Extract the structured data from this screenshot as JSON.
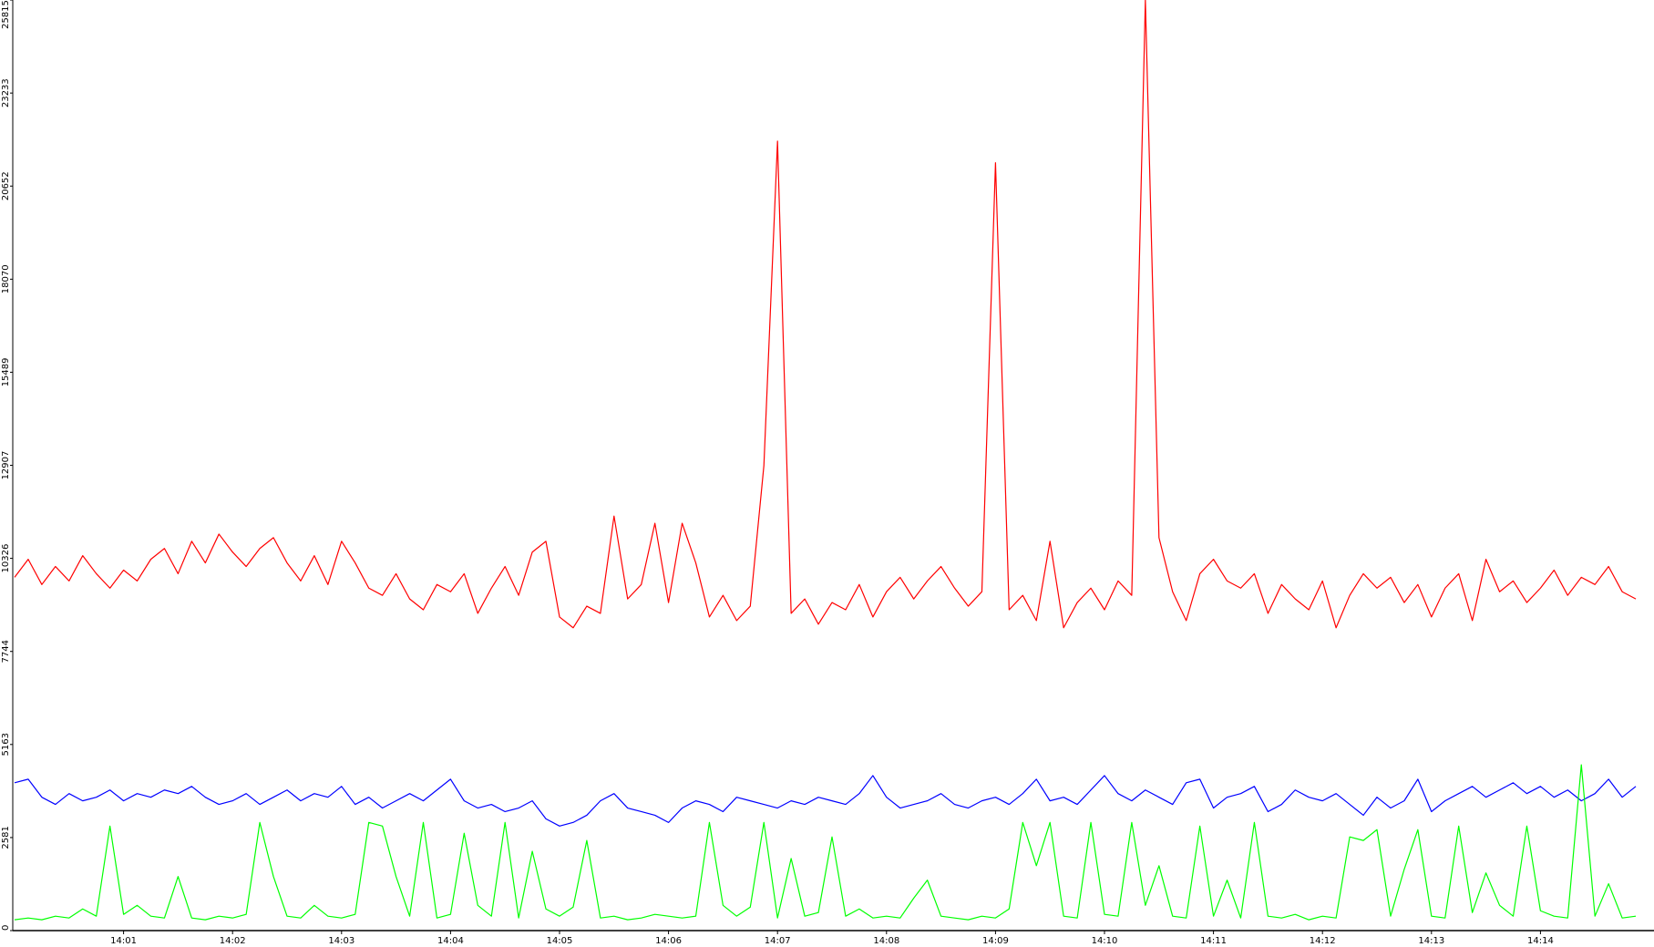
{
  "chart_data": {
    "type": "line",
    "categories": [
      null,
      null,
      null,
      null,
      null,
      null,
      null,
      null,
      "14:01",
      null,
      null,
      null,
      null,
      null,
      null,
      null,
      "14:02",
      null,
      null,
      null,
      null,
      null,
      null,
      null,
      "14:03",
      null,
      null,
      null,
      null,
      null,
      null,
      null,
      "14:04",
      null,
      null,
      null,
      null,
      null,
      null,
      null,
      "14:05",
      null,
      null,
      null,
      null,
      null,
      null,
      null,
      "14:06",
      null,
      null,
      null,
      null,
      null,
      null,
      null,
      "14:07",
      null,
      null,
      null,
      null,
      null,
      null,
      null,
      "14:08",
      null,
      null,
      null,
      null,
      null,
      null,
      null,
      "14:09",
      null,
      null,
      null,
      null,
      null,
      null,
      null,
      "14:10",
      null,
      null,
      null,
      null,
      null,
      null,
      null,
      "14:11",
      null,
      null,
      null,
      null,
      null,
      null,
      null,
      "14:12",
      null,
      null,
      null,
      null,
      null,
      null,
      null,
      "14:13",
      null,
      null,
      null,
      null,
      null,
      null,
      null,
      "14:14",
      null,
      null,
      null,
      null,
      null,
      null,
      null
    ],
    "series": [
      {
        "color": "#ff0000",
        "values": [
          9800,
          10300,
          9600,
          10100,
          9700,
          10400,
          9900,
          9500,
          10000,
          9700,
          10300,
          10600,
          9900,
          10800,
          10200,
          11000,
          10500,
          10100,
          10600,
          10900,
          10200,
          9700,
          10400,
          9600,
          10800,
          10200,
          9500,
          9300,
          9900,
          9200,
          8900,
          9600,
          9400,
          9900,
          8800,
          9500,
          10100,
          9300,
          10500,
          10800,
          8700,
          8400,
          9000,
          8800,
          11500,
          9200,
          9600,
          11300,
          9100,
          11300,
          10200,
          8700,
          9300,
          8600,
          9000,
          12900,
          21900,
          8800,
          9200,
          8500,
          9100,
          8900,
          9600,
          8700,
          9400,
          9800,
          9200,
          9700,
          10100,
          9500,
          9000,
          9400,
          21300,
          8900,
          9300,
          8600,
          10800,
          8400,
          9100,
          9500,
          8900,
          9700,
          9300,
          25815,
          10900,
          9400,
          8600,
          9900,
          10300,
          9700,
          9500,
          9900,
          8800,
          9600,
          9200,
          8900,
          9700,
          8400,
          9300,
          9900,
          9500,
          9800,
          9100,
          9600,
          8700,
          9500,
          9900,
          8600,
          10300,
          9400,
          9700,
          9100,
          9500,
          10000,
          9300,
          9800,
          9600,
          10100,
          9400,
          9200
        ]
      },
      {
        "color": "#0000ff",
        "values": [
          4100,
          4200,
          3700,
          3500,
          3800,
          3600,
          3700,
          3900,
          3600,
          3800,
          3700,
          3900,
          3800,
          4000,
          3700,
          3500,
          3600,
          3800,
          3500,
          3700,
          3900,
          3600,
          3800,
          3700,
          4000,
          3500,
          3700,
          3400,
          3600,
          3800,
          3600,
          3900,
          4200,
          3600,
          3400,
          3500,
          3300,
          3400,
          3600,
          3100,
          2900,
          3000,
          3200,
          3600,
          3800,
          3400,
          3300,
          3200,
          3000,
          3400,
          3600,
          3500,
          3300,
          3700,
          3600,
          3500,
          3400,
          3600,
          3500,
          3700,
          3600,
          3500,
          3800,
          4300,
          3700,
          3400,
          3500,
          3600,
          3800,
          3500,
          3400,
          3600,
          3700,
          3500,
          3800,
          4200,
          3600,
          3700,
          3500,
          3900,
          4300,
          3800,
          3600,
          3900,
          3700,
          3500,
          4100,
          4200,
          3400,
          3700,
          3800,
          4000,
          3300,
          3500,
          3900,
          3700,
          3600,
          3800,
          3500,
          3200,
          3700,
          3400,
          3600,
          4200,
          3300,
          3600,
          3800,
          4000,
          3700,
          3900,
          4100,
          3800,
          4000,
          3700,
          3900,
          3600,
          3800,
          4200,
          3700,
          4000
        ]
      },
      {
        "color": "#00ff00",
        "values": [
          300,
          350,
          300,
          400,
          350,
          600,
          400,
          2900,
          450,
          700,
          400,
          350,
          1500,
          350,
          300,
          400,
          350,
          450,
          3000,
          1500,
          400,
          350,
          700,
          400,
          350,
          450,
          3000,
          2900,
          1500,
          400,
          3000,
          350,
          450,
          2700,
          700,
          400,
          3000,
          350,
          2200,
          600,
          400,
          650,
          2500,
          350,
          400,
          300,
          350,
          450,
          400,
          350,
          400,
          3000,
          700,
          400,
          650,
          3000,
          350,
          2000,
          400,
          500,
          2600,
          400,
          600,
          350,
          400,
          350,
          900,
          1400,
          400,
          350,
          300,
          400,
          350,
          600,
          3000,
          1800,
          3000,
          400,
          350,
          3000,
          450,
          400,
          3000,
          700,
          1800,
          400,
          350,
          2900,
          400,
          1400,
          350,
          3000,
          400,
          350,
          450,
          300,
          400,
          350,
          2600,
          2500,
          2800,
          400,
          1700,
          2800,
          400,
          350,
          2900,
          500,
          1600,
          700,
          400,
          2900,
          550,
          400,
          350,
          4600,
          400,
          1300,
          350,
          400
        ]
      }
    ],
    "ylim": [
      0,
      25815
    ],
    "yticks": [
      0,
      2581,
      5163,
      7744,
      10326,
      12907,
      15489,
      18070,
      20652,
      23233,
      25815
    ]
  }
}
